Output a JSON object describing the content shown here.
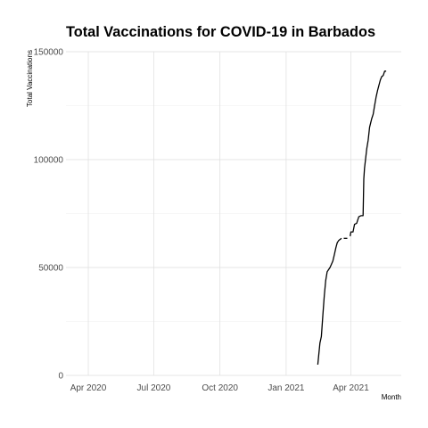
{
  "chart_data": {
    "type": "line",
    "title": "Total Vaccinations for COVID-19 in Barbados",
    "xlabel": "Month",
    "ylabel": "Total Vaccinations",
    "xlim": [
      "2020-03-01",
      "2021-06-10"
    ],
    "ylim": [
      0,
      150000
    ],
    "grid": true,
    "legend": "none",
    "line_color": "#000000",
    "x_ticks": [
      {
        "date": "2020-04-01",
        "label": "Apr 2020"
      },
      {
        "date": "2020-07-01",
        "label": "Jul 2020"
      },
      {
        "date": "2020-10-01",
        "label": "Oct 2020"
      },
      {
        "date": "2021-01-01",
        "label": "Jan 2021"
      },
      {
        "date": "2021-04-01",
        "label": "Apr 2021"
      }
    ],
    "y_ticks": [
      {
        "value": 0,
        "label": "0"
      },
      {
        "value": 50000,
        "label": "50000"
      },
      {
        "value": 100000,
        "label": "100000"
      },
      {
        "value": 150000,
        "label": "150000"
      }
    ],
    "segments": [
      {
        "x": [
          "2021-02-14",
          "2021-02-17",
          "2021-02-19",
          "2021-02-21",
          "2021-02-23",
          "2021-02-25",
          "2021-02-27",
          "2021-03-01",
          "2021-03-03",
          "2021-03-05",
          "2021-03-07",
          "2021-03-09",
          "2021-03-11",
          "2021-03-13",
          "2021-03-15",
          "2021-03-17",
          "2021-03-19"
        ],
        "y": [
          5000,
          15000,
          18000,
          28000,
          37000,
          44000,
          48000,
          49000,
          50000,
          51500,
          53000,
          56000,
          59000,
          61500,
          62500,
          63000,
          63500
        ]
      },
      {
        "x": [
          "2021-03-22",
          "2021-03-27"
        ],
        "y": [
          63500,
          63500
        ]
      },
      {
        "x": [
          "2021-03-31",
          "2021-04-01",
          "2021-04-04",
          "2021-04-06",
          "2021-04-09",
          "2021-04-12",
          "2021-04-15",
          "2021-04-18",
          "2021-04-19",
          "2021-04-20",
          "2021-04-23",
          "2021-04-25",
          "2021-04-27",
          "2021-04-30",
          "2021-05-02",
          "2021-05-04",
          "2021-05-06",
          "2021-05-08",
          "2021-05-10",
          "2021-05-12",
          "2021-05-14",
          "2021-05-16",
          "2021-05-18",
          "2021-05-20"
        ],
        "y": [
          64500,
          66500,
          66500,
          70000,
          70500,
          73500,
          74000,
          74000,
          91000,
          96000,
          105000,
          109000,
          115000,
          119000,
          121000,
          125000,
          129000,
          132000,
          134500,
          137000,
          138500,
          139000,
          141000,
          141000
        ]
      }
    ]
  }
}
